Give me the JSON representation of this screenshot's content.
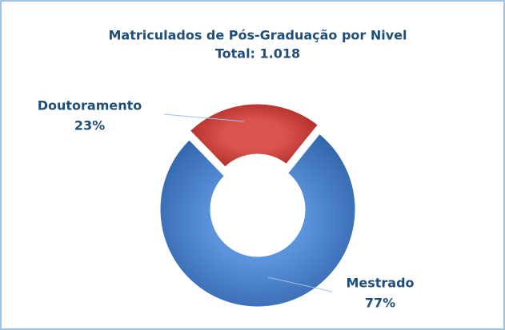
{
  "chart_data": {
    "type": "donut",
    "title": "Matriculados de Pós-Graduação por Nivel",
    "subtitle": "Total: 1.018",
    "categories": [
      "Doutoramento",
      "Mestrado"
    ],
    "values": [
      23,
      77
    ],
    "value_labels": [
      "23%",
      "77%"
    ],
    "colors": [
      "#c0392f",
      "#3f77c2"
    ]
  }
}
